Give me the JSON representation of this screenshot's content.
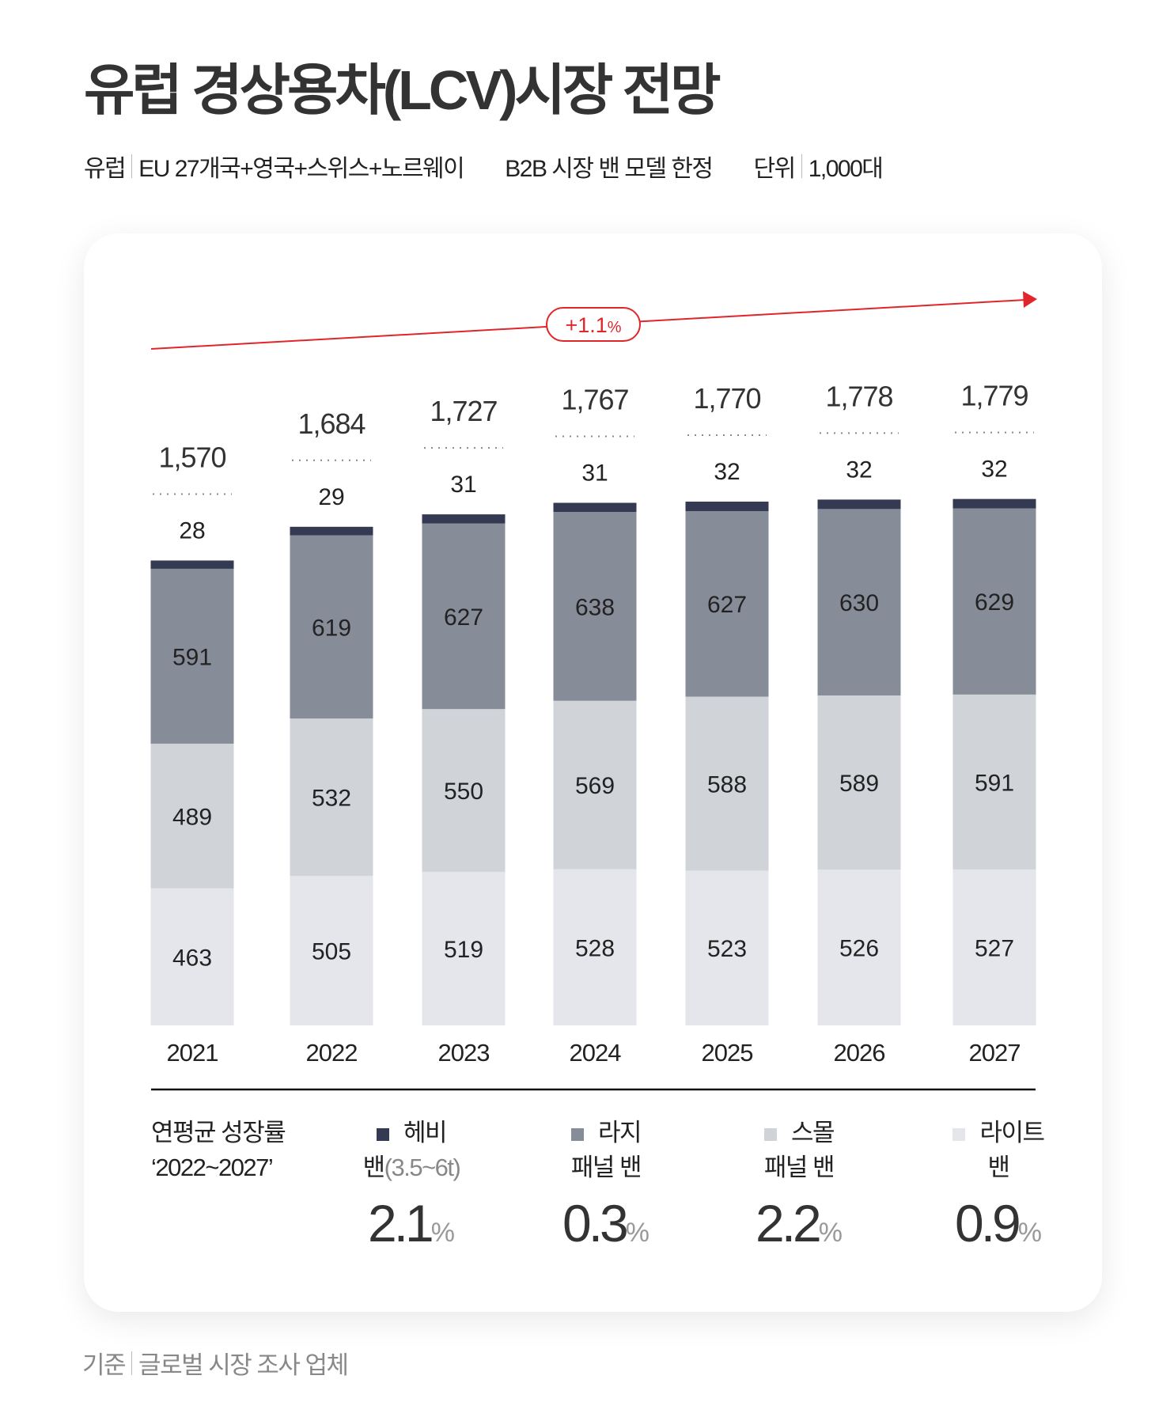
{
  "header": {
    "title": "유럽 경상용차(LCV)시장 전망",
    "region_label": "유럽",
    "region_value": "EU 27개국+영국+스위스+노르웨이",
    "scope": "B2B 시장 밴 모델 한정",
    "unit_label": "단위",
    "unit_value": "1,000대"
  },
  "chart_data": {
    "type": "bar",
    "stacked": true,
    "categories": [
      "2021",
      "2022",
      "2023",
      "2024",
      "2025",
      "2026",
      "2027"
    ],
    "series": [
      {
        "name": "라이트 밴",
        "color": "#e4e6eb",
        "values": [
          463,
          505,
          519,
          528,
          523,
          526,
          527
        ]
      },
      {
        "name": "스몰 패널 밴",
        "color": "#d0d3d8",
        "values": [
          489,
          532,
          550,
          569,
          588,
          589,
          591
        ]
      },
      {
        "name": "라지 패널 밴",
        "color": "#878c99",
        "values": [
          591,
          619,
          627,
          638,
          627,
          630,
          629
        ]
      },
      {
        "name": "헤비 밴(3.5~6t)",
        "color": "#343a52",
        "values": [
          28,
          29,
          31,
          31,
          32,
          32,
          32
        ]
      }
    ],
    "totals": [
      "1,570",
      "1,684",
      "1,727",
      "1,767",
      "1,770",
      "1,778",
      "1,779"
    ],
    "trend_label": "+1.1",
    "trend_unit": "%",
    "trend_color": "#e0262a",
    "ylim": [
      0,
      1800
    ]
  },
  "legend": {
    "head_line1": "연평균 성장률",
    "head_line2": "‘2022~2027’",
    "items": [
      {
        "line1": "헤비",
        "line2": "밴",
        "note": "(3.5~6t)",
        "value": "2.1",
        "unit": "%",
        "color": "#343a52"
      },
      {
        "line1": "라지",
        "line2": "패널 밴",
        "note": "",
        "value": "0.3",
        "unit": "%",
        "color": "#878c99"
      },
      {
        "line1": "스몰",
        "line2": "패널 밴",
        "note": "",
        "value": "2.2",
        "unit": "%",
        "color": "#d0d3d8"
      },
      {
        "line1": "라이트",
        "line2": "밴",
        "note": "",
        "value": "0.9",
        "unit": "%",
        "color": "#e4e6eb"
      }
    ]
  },
  "footer": {
    "label": "기준",
    "value": "글로벌 시장 조사 업체"
  }
}
